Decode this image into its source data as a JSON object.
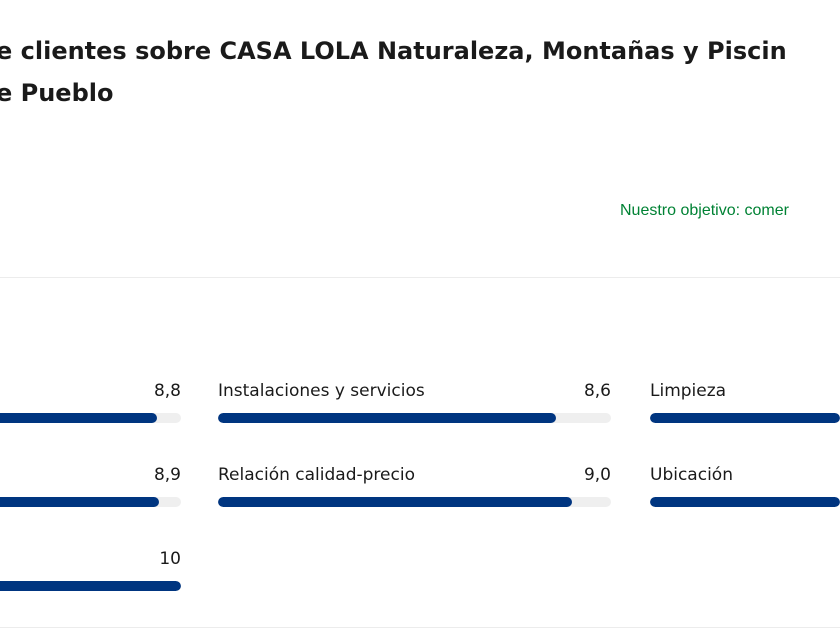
{
  "header": {
    "title_line1": "e clientes sobre CASA LOLA Naturaleza, Montañas y Piscin",
    "title_line2": "e Pueblo",
    "objective": "Nuestro objetivo: comer"
  },
  "scores": [
    {
      "id": "left-1",
      "label": "",
      "value": "8,8",
      "fraction": 0.88
    },
    {
      "id": "mid-1",
      "label": "Instalaciones y servicios",
      "value": "8,6",
      "fraction": 0.86
    },
    {
      "id": "right-1",
      "label": "Limpieza",
      "value": "",
      "fraction": 1.0
    },
    {
      "id": "left-2",
      "label": "",
      "value": "8,9",
      "fraction": 0.89
    },
    {
      "id": "mid-2",
      "label": "Relación calidad-precio",
      "value": "9,0",
      "fraction": 0.9
    },
    {
      "id": "right-2",
      "label": "Ubicación",
      "value": "",
      "fraction": 1.0
    },
    {
      "id": "left-3",
      "label": "",
      "value": "10",
      "fraction": 1.0
    }
  ],
  "colors": {
    "bar": "#003580",
    "track": "#efefef",
    "objective": "#008234"
  }
}
